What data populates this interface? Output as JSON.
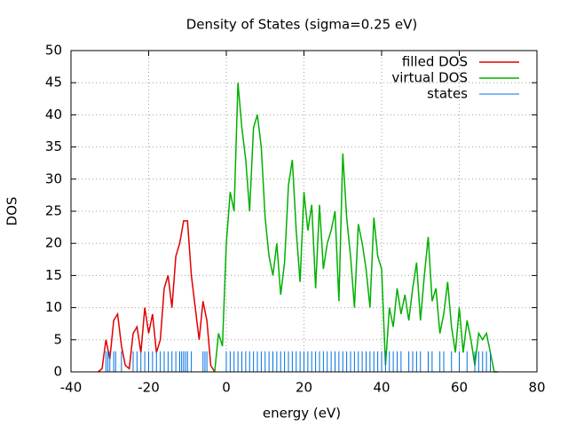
{
  "chart_data": {
    "type": "line",
    "title": "Density of States (sigma=0.25 eV)",
    "x_label": "energy (eV)",
    "y_label": "DOS",
    "xlim": [
      -40,
      80
    ],
    "xticks": [
      -40,
      -20,
      0,
      20,
      40,
      60,
      80
    ],
    "ylim": [
      0,
      50
    ],
    "yticks": [
      0,
      5,
      10,
      15,
      20,
      25,
      30,
      35,
      40,
      45,
      50
    ],
    "grid": true,
    "legend": "top-right",
    "series": [
      {
        "name": "filled DOS",
        "color": "#e00000",
        "style": "line",
        "x": [
          -33,
          -32,
          -31,
          -30,
          -29,
          -28,
          -27,
          -26,
          -25,
          -24,
          -23,
          -22,
          -21,
          -20,
          -19,
          -18,
          -17,
          -16,
          -15,
          -14,
          -13,
          -12,
          -11,
          -10,
          -9,
          -8,
          -7,
          -6,
          -5,
          -4,
          -3
        ],
        "values": [
          0,
          0.5,
          5,
          2,
          8,
          9,
          4,
          1,
          0.5,
          6,
          7,
          3,
          10,
          6,
          9,
          3,
          5,
          13,
          15,
          10,
          18,
          20,
          23.5,
          23.5,
          15,
          10,
          5,
          11,
          8,
          1,
          0
        ]
      },
      {
        "name": "virtual DOS",
        "color": "#00b000",
        "style": "line",
        "x": [
          -3,
          -2,
          -1,
          0,
          1,
          2,
          3,
          4,
          5,
          6,
          7,
          8,
          9,
          10,
          11,
          12,
          13,
          14,
          15,
          16,
          17,
          18,
          19,
          20,
          21,
          22,
          23,
          24,
          25,
          26,
          27,
          28,
          29,
          30,
          31,
          32,
          33,
          34,
          35,
          36,
          37,
          38,
          39,
          40,
          41,
          42,
          43,
          44,
          45,
          46,
          47,
          48,
          49,
          50,
          51,
          52,
          53,
          54,
          55,
          56,
          57,
          58,
          59,
          60,
          61,
          62,
          63,
          64,
          65,
          66,
          67,
          68,
          69,
          70
        ],
        "values": [
          0,
          6,
          4,
          20,
          28,
          25,
          45,
          38,
          33,
          25,
          38,
          40,
          35,
          24,
          18,
          15,
          20,
          12,
          17,
          29,
          33,
          22,
          14,
          28,
          22,
          26,
          13,
          26,
          16,
          20,
          22,
          25,
          11,
          34,
          24,
          18,
          10,
          23,
          20,
          16,
          10,
          24,
          18,
          16,
          1,
          10,
          7,
          13,
          9,
          12,
          8,
          13,
          17,
          8,
          15,
          21,
          11,
          13,
          6,
          9,
          14,
          7,
          3,
          10,
          3,
          8,
          5,
          1,
          6,
          5,
          6,
          3,
          0,
          0
        ]
      },
      {
        "name": "states",
        "color": "#0070e0",
        "style": "impulses",
        "x": [
          -31,
          -30.5,
          -30,
          -29,
          -28.5,
          -27,
          -24,
          -23,
          -22,
          -21,
          -20,
          -19,
          -18,
          -17,
          -16,
          -15,
          -14,
          -13,
          -12,
          -11.5,
          -11,
          -10.5,
          -10,
          -9,
          -6,
          -5.5,
          -5,
          0,
          1,
          2,
          3,
          4,
          5,
          6,
          7,
          8,
          9,
          10,
          11,
          12,
          13,
          14,
          15,
          16,
          17,
          18,
          19,
          20,
          21,
          22,
          23,
          24,
          25,
          26,
          27,
          28,
          29,
          30,
          31,
          32,
          33,
          34,
          35,
          36,
          37,
          38,
          39,
          40,
          41,
          42,
          43,
          44,
          45,
          47,
          48,
          49,
          50,
          52,
          53,
          55,
          56,
          58,
          60,
          62,
          64,
          65,
          66,
          67,
          68
        ],
        "values": [
          3.2,
          3.2,
          3.2,
          3.2,
          3.2,
          3.2,
          3.2,
          3.2,
          3.2,
          3.2,
          3.2,
          3.2,
          3.2,
          3.2,
          3.2,
          3.2,
          3.2,
          3.2,
          3.2,
          3.2,
          3.2,
          3.2,
          3.2,
          3.2,
          3.2,
          3.2,
          3.2,
          3.2,
          3.2,
          3.2,
          3.2,
          3.2,
          3.2,
          3.2,
          3.2,
          3.2,
          3.2,
          3.2,
          3.2,
          3.2,
          3.2,
          3.2,
          3.2,
          3.2,
          3.2,
          3.2,
          3.2,
          3.2,
          3.2,
          3.2,
          3.2,
          3.2,
          3.2,
          3.2,
          3.2,
          3.2,
          3.2,
          3.2,
          3.2,
          3.2,
          3.2,
          3.2,
          3.2,
          3.2,
          3.2,
          3.2,
          3.2,
          3.2,
          3.2,
          3.2,
          3.2,
          3.2,
          3.2,
          3.2,
          3.2,
          3.2,
          3.2,
          3.2,
          3.2,
          3.2,
          3.2,
          3.2,
          3.2,
          3.2,
          3.2,
          3.2,
          3.2,
          3.2,
          3.2
        ]
      }
    ]
  }
}
